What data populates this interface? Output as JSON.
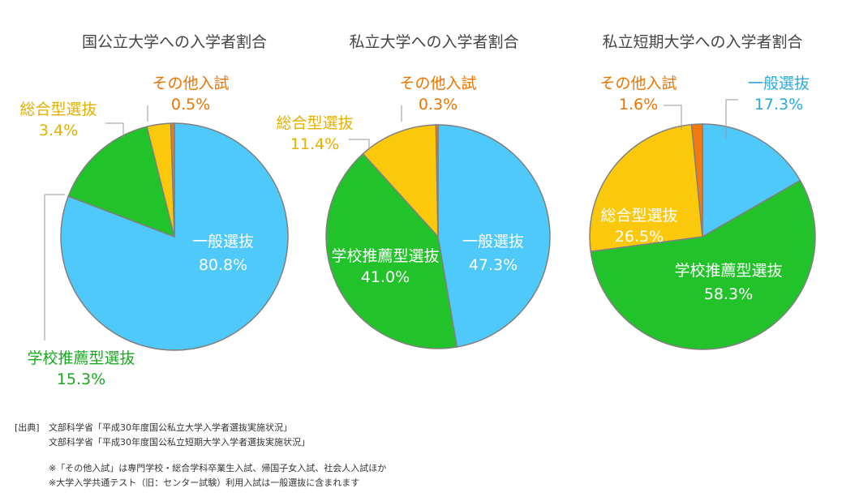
{
  "colors": {
    "general": "#4fc8fa",
    "school": "#22c32a",
    "comprehensive": "#fcc80c",
    "other": "#f47a10",
    "label_general": "#29a9e0",
    "label_school": "#1aa920",
    "label_comprehensive": "#e4b000",
    "label_other": "#ee7400",
    "inner_text": "#ffffff",
    "leader_line": "#999999",
    "pie_border": "#808080"
  },
  "chart_data": [
    {
      "type": "pie",
      "title": "国公立大学への入学者割合",
      "slices": [
        {
          "key": "general",
          "name": "一般選抜",
          "value": 80.8,
          "value_label": "80.8%"
        },
        {
          "key": "school",
          "name": "学校推薦型選抜",
          "value": 15.3,
          "value_label": "15.3%"
        },
        {
          "key": "comprehensive",
          "name": "総合型選抜",
          "value": 3.4,
          "value_label": "3.4%"
        },
        {
          "key": "other",
          "name": "その他入試",
          "value": 0.5,
          "value_label": "0.5%"
        }
      ]
    },
    {
      "type": "pie",
      "title": "私立大学への入学者割合",
      "slices": [
        {
          "key": "general",
          "name": "一般選抜",
          "value": 47.3,
          "value_label": "47.3%"
        },
        {
          "key": "school",
          "name": "学校推薦型選抜",
          "value": 41.0,
          "value_label": "41.0%"
        },
        {
          "key": "comprehensive",
          "name": "総合型選抜",
          "value": 11.4,
          "value_label": "11.4%"
        },
        {
          "key": "other",
          "name": "その他入試",
          "value": 0.3,
          "value_label": "0.3%"
        }
      ]
    },
    {
      "type": "pie",
      "title": "私立短期大学への入学者割合",
      "slices": [
        {
          "key": "general",
          "name": "一般選抜",
          "value": 17.3,
          "value_label": "17.3%"
        },
        {
          "key": "school",
          "name": "学校推薦型選抜",
          "value": 58.3,
          "value_label": "58.3%"
        },
        {
          "key": "comprehensive",
          "name": "総合型選抜",
          "value": 26.5,
          "value_label": "26.5%"
        },
        {
          "key": "other",
          "name": "その他入試",
          "value": 1.6,
          "value_label": "1.6%"
        }
      ]
    }
  ],
  "footer": {
    "source_label": "[出典]",
    "source_1": "文部科学省「平成30年度国公私立大学入学者選抜実施状況」",
    "source_2": "文部科学省「平成30年度国公私立短期大学入学者選抜実施状況」",
    "note_1": "※「その他入試」は専門学校・総合学科卒業生入試、帰国子女入試、社会人入試ほか",
    "note_2": "※大学入学共通テスト（旧：センター試験）利用入試は一般選抜に含まれます"
  }
}
